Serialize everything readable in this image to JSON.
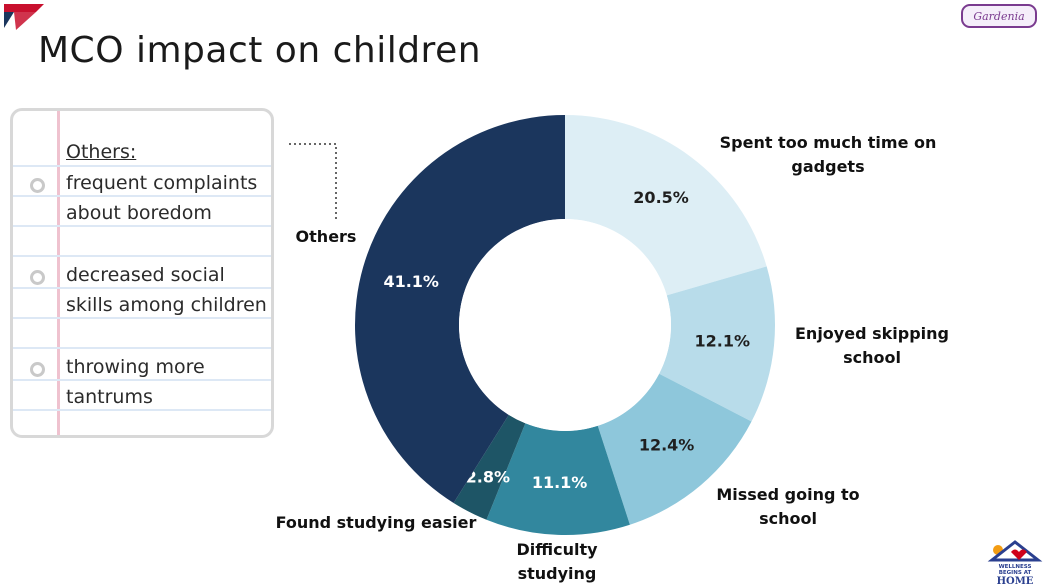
{
  "slide": {
    "title": "MCO impact on children",
    "brand_badge_text": "Gardenia",
    "wellness_logo_text": [
      "WELLNESS",
      "BEGINS AT",
      "HOME"
    ]
  },
  "notes": {
    "heading": "Others:",
    "bullets": [
      [
        "frequent complaints",
        "about boredom"
      ],
      [
        "decreased social",
        "skills among children"
      ],
      [
        "throwing more",
        "tantrums"
      ]
    ]
  },
  "chart_data": {
    "type": "pie",
    "title": "MCO impact on children",
    "donut": true,
    "start_at": "12 o'clock",
    "direction": "clockwise",
    "unit": "%",
    "slices": [
      {
        "label": "Spent too much time on gadgets",
        "label_lines": [
          "Spent too much time on",
          "gadgets"
        ],
        "value": 20.5,
        "display": "20.5%",
        "color": "#ddeef5",
        "text_color": "#1f1f1f"
      },
      {
        "label": "Enjoyed skipping school",
        "label_lines": [
          "Enjoyed skipping",
          "school"
        ],
        "value": 12.1,
        "display": "12.1%",
        "color": "#b8dcea",
        "text_color": "#1f1f1f"
      },
      {
        "label": "Missed going to school",
        "label_lines": [
          "Missed going to",
          "school"
        ],
        "value": 12.4,
        "display": "12.4%",
        "color": "#8ec7db",
        "text_color": "#1f1f1f"
      },
      {
        "label": "Difficulty studying",
        "label_lines": [
          "Difficulty",
          "studying"
        ],
        "value": 11.1,
        "display": "11.1%",
        "color": "#32879e",
        "text_color": "#ffffff"
      },
      {
        "label": "Found studying easier",
        "label_lines": [
          "Found studying easier"
        ],
        "value": 2.8,
        "display": "2.8%",
        "color": "#1e5566",
        "text_color": "#ffffff"
      },
      {
        "label": "Others",
        "label_lines": [
          "Others"
        ],
        "value": 41.1,
        "display": "41.1%",
        "color": "#1b365d",
        "text_color": "#ffffff"
      }
    ]
  }
}
